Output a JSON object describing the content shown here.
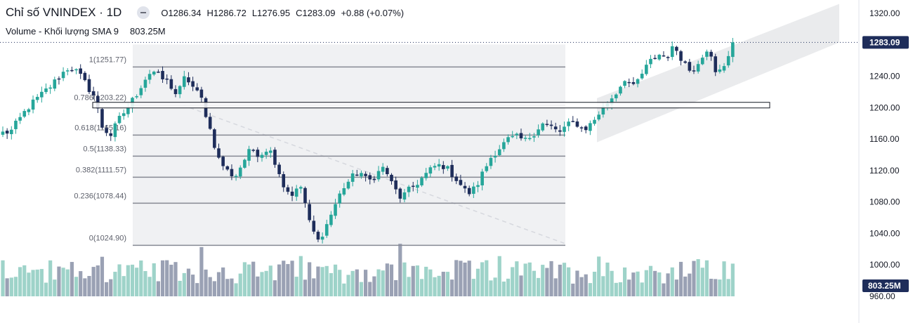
{
  "header": {
    "title": "Chỉ số VNINDEX · 1D",
    "open": "O1286.34",
    "high": "H1286.72",
    "low": "L1276.95",
    "close": "C1283.09",
    "change": "+0.88 (+0.07%)"
  },
  "volume_legend": {
    "label": "Volume - Khối lượng SMA 9",
    "value": "803.25M"
  },
  "price_tag": "1283.09",
  "volume_tag": "803.25M",
  "colors": {
    "up": "#26a69a",
    "down": "#1e2d5a",
    "vol_up": "#9ed3c9",
    "vol_down": "#9aa1b4",
    "fib_line": "#868993",
    "shade": "#f0f1f3"
  },
  "chart_data": {
    "type": "candlestick",
    "y_axis": {
      "range": [
        948,
        1336
      ],
      "ticks": [
        "1320.00",
        "1280.00",
        "1240.00",
        "1200.00",
        "1160.00",
        "1120.00",
        "1080.00",
        "1040.00",
        "1000.00",
        "960.00"
      ]
    },
    "fibonacci_levels": [
      {
        "label": "1(1251.77)",
        "value": 1251.77
      },
      {
        "label": "0.786(1203.22)",
        "value": 1203.22
      },
      {
        "label": "0.618(1165.16)",
        "value": 1165.16
      },
      {
        "label": "0.5(1138.33)",
        "value": 1138.33
      },
      {
        "label": "0.382(1111.57)",
        "value": 1111.57
      },
      {
        "label": "0.236(1078.44)",
        "value": 1078.44
      },
      {
        "label": "0(1024.90)",
        "value": 1024.9
      }
    ],
    "last_close": 1283.09,
    "last_volume": "803.25M",
    "price_keypoints": [
      1168,
      1170,
      1185,
      1200,
      1210,
      1220,
      1230,
      1242,
      1252,
      1245,
      1230,
      1215,
      1175,
      1165,
      1185,
      1200,
      1215,
      1235,
      1248,
      1238,
      1232,
      1215,
      1240,
      1225,
      1210,
      1172,
      1135,
      1120,
      1112,
      1132,
      1148,
      1140,
      1150,
      1128,
      1096,
      1090,
      1100,
      1052,
      1030,
      1050,
      1075,
      1098,
      1110,
      1120,
      1105,
      1115,
      1125,
      1100,
      1085,
      1095,
      1105,
      1115,
      1125,
      1127,
      1118,
      1105,
      1090,
      1098,
      1120,
      1140,
      1150,
      1160,
      1162,
      1158,
      1168,
      1180,
      1176,
      1168,
      1177,
      1182,
      1172,
      1180,
      1195,
      1208,
      1220,
      1238,
      1225,
      1242,
      1258,
      1268,
      1265,
      1278,
      1260,
      1245,
      1262,
      1277,
      1240,
      1255,
      1283
    ]
  }
}
